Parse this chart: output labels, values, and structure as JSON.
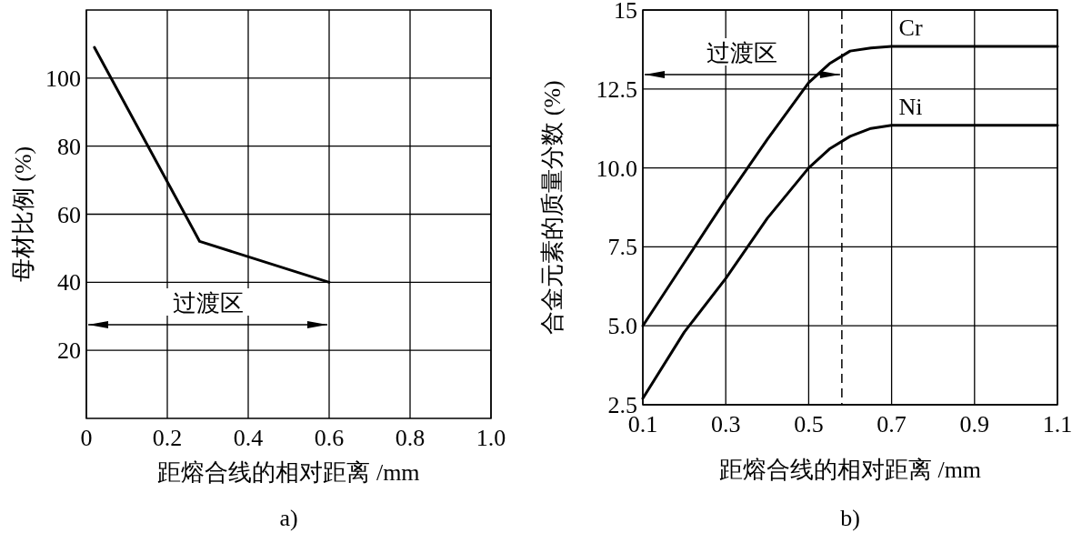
{
  "chart_data": [
    {
      "type": "line",
      "title": "a)",
      "xlabel": "距熔合线的相对距离 /mm",
      "ylabel": "母材比例 (%)",
      "x": [
        0.02,
        0.28,
        0.6
      ],
      "series": [
        {
          "color": "#000000",
          "values": [
            109,
            52,
            40
          ]
        }
      ],
      "xlim": [
        0,
        1
      ],
      "ylim": [
        0,
        120
      ],
      "xticks": [
        0,
        0.2,
        0.4,
        0.6,
        0.8,
        {
          "value": 1,
          "label": "1.0"
        }
      ],
      "yticks": [
        20,
        40,
        60,
        80,
        100
      ],
      "grid": true,
      "annotations": [
        "过渡区"
      ]
    },
    {
      "type": "line",
      "title": "b)",
      "xlabel": "距熔合线的相对距离 /mm",
      "ylabel": "合金元素的质量分数 (%)",
      "x": [
        0.1,
        0.2,
        0.3,
        0.4,
        0.5,
        0.55,
        0.6,
        0.65,
        0.7,
        0.9,
        1.1
      ],
      "series": [
        {
          "name": "Cr",
          "color": "#000000",
          "values": [
            5.0,
            7.0,
            9.0,
            10.9,
            12.7,
            13.3,
            13.7,
            13.8,
            13.85,
            13.85,
            13.85
          ]
        },
        {
          "name": "Ni",
          "color": "#000000",
          "values": [
            2.7,
            4.8,
            6.5,
            8.4,
            10.0,
            10.6,
            11.0,
            11.25,
            11.35,
            11.35,
            11.35
          ]
        }
      ],
      "xlim": [
        0.1,
        1.1
      ],
      "ylim": [
        2.5,
        15
      ],
      "xticks": [
        0.1,
        0.3,
        0.5,
        0.7,
        0.9,
        1.1
      ],
      "yticks": [
        2.5,
        {
          "value": 5,
          "label": "5.0"
        },
        7.5,
        {
          "value": 10,
          "label": "10.0"
        },
        12.5,
        15
      ],
      "grid": true,
      "ref_lines": [
        {
          "axis": "x",
          "value": 0.58,
          "line_style": "dashed"
        }
      ],
      "annotations": [
        "过渡区"
      ]
    }
  ]
}
